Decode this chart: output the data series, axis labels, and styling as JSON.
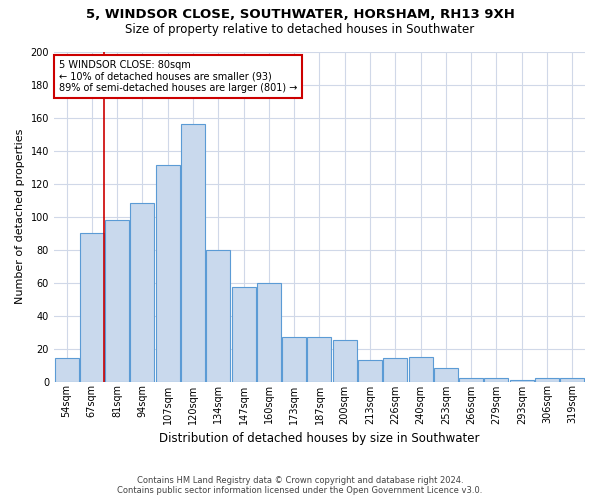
{
  "title": "5, WINDSOR CLOSE, SOUTHWATER, HORSHAM, RH13 9XH",
  "subtitle": "Size of property relative to detached houses in Southwater",
  "xlabel": "Distribution of detached houses by size in Southwater",
  "ylabel": "Number of detached properties",
  "footer_line1": "Contains HM Land Registry data © Crown copyright and database right 2024.",
  "footer_line2": "Contains public sector information licensed under the Open Government Licence v3.0.",
  "categories": [
    "54sqm",
    "67sqm",
    "81sqm",
    "94sqm",
    "107sqm",
    "120sqm",
    "134sqm",
    "147sqm",
    "160sqm",
    "173sqm",
    "187sqm",
    "200sqm",
    "213sqm",
    "226sqm",
    "240sqm",
    "253sqm",
    "266sqm",
    "279sqm",
    "293sqm",
    "306sqm",
    "319sqm"
  ],
  "values": [
    14,
    90,
    98,
    108,
    131,
    156,
    80,
    57,
    60,
    27,
    27,
    25,
    13,
    14,
    15,
    8,
    2,
    2,
    1,
    2,
    2
  ],
  "bar_color": "#c9d9ed",
  "bar_edge_color": "#5b9bd5",
  "marker_label": "5 WINDSOR CLOSE: 80sqm",
  "annotation_line1": "← 10% of detached houses are smaller (93)",
  "annotation_line2": "89% of semi-detached houses are larger (801) →",
  "annotation_box_color": "#ffffff",
  "annotation_box_edge_color": "#cc0000",
  "vline_color": "#cc0000",
  "vline_x": 1.5,
  "ylim": [
    0,
    200
  ],
  "yticks": [
    0,
    20,
    40,
    60,
    80,
    100,
    120,
    140,
    160,
    180,
    200
  ],
  "grid_color": "#d0d8e8",
  "background_color": "#ffffff",
  "title_fontsize": 9.5,
  "subtitle_fontsize": 8.5,
  "ylabel_fontsize": 8,
  "xlabel_fontsize": 8.5,
  "tick_fontsize": 7,
  "annotation_fontsize": 7,
  "footer_fontsize": 6
}
